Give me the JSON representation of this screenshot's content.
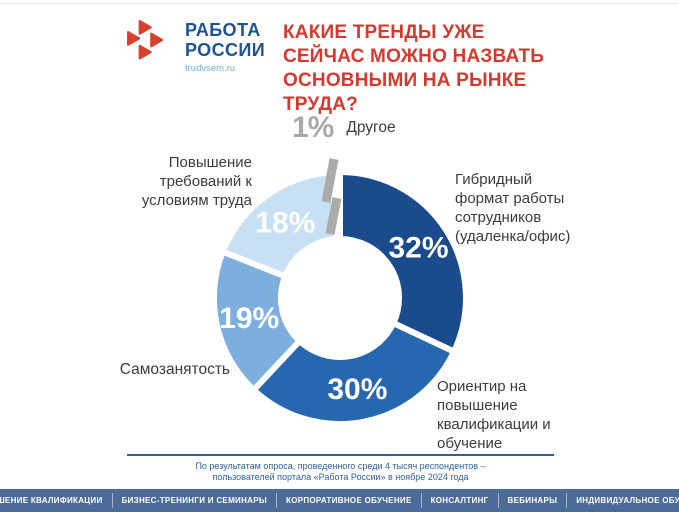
{
  "header": {
    "logo": {
      "line1": "РАБОТА",
      "line2": "РОССИИ",
      "site": "trudvsem.ru",
      "logo_red": "#d8402f",
      "logo_blue": "#1d5296"
    },
    "title_lines": [
      "КАКИЕ ТРЕНДЫ УЖЕ",
      "СЕЙЧАС МОЖНО НАЗВАТЬ",
      "ОСНОВНЫМИ НА РЫНКЕ",
      "ТРУДА?"
    ],
    "title_color": "#d6392e"
  },
  "chart_data": {
    "type": "pie",
    "subtype": "donut",
    "title": "Какие тренды уже сейчас можно назвать основными на рынке труда?",
    "units": "%",
    "start_angle_deg": 0,
    "clockwise": true,
    "legend_position": "around",
    "categories": [
      "Гибридный формат работы сотрудников (удаленка/офис)",
      "Ориентир на повышение квалификации и обучение",
      "Самозанятость",
      "Повышение требований к условиям труда",
      "Другое"
    ],
    "values": [
      32,
      30,
      19,
      18,
      1
    ],
    "segments": [
      {
        "label": "Гибридный формат работы сотрудников (удаленка/офис)",
        "value": 32,
        "pct": "32%",
        "color": "#1a4b8d"
      },
      {
        "label": "Ориентир на повышение квалификации и обучение",
        "value": 30,
        "pct": "30%",
        "color": "#2767b0"
      },
      {
        "label": "Самозанятость",
        "value": 19,
        "pct": "19%",
        "color": "#7cafdd"
      },
      {
        "label": "Повышение требований к условиям труда",
        "value": 18,
        "pct": "18%",
        "color": "#c8e0f4"
      },
      {
        "label": "Другое",
        "value": 1,
        "pct": "1%",
        "color": "#ababab",
        "exploded": true,
        "label_outside": true
      }
    ]
  },
  "footnote": {
    "line1": "По результатам опроса, проведенного среди 4 тысяч респондентов –",
    "line2": "пользователей портала «Работа России» в ноябре 2024 года",
    "color": "#2f5f9c"
  },
  "nav": {
    "bg": "#4d6b99",
    "items": [
      "ПОВЫШЕНИЕ КВАЛИФИКАЦИИ",
      "БИЗНЕС-ТРЕНИНГИ И СЕМИНАРЫ",
      "КОРПОРАТИВНОЕ ОБУЧЕНИЕ",
      "КОНСАЛТИНГ",
      "ВЕБИНАРЫ",
      "ИНДИВИДУАЛЬНОЕ ОБУЧЕНИЕ"
    ]
  }
}
